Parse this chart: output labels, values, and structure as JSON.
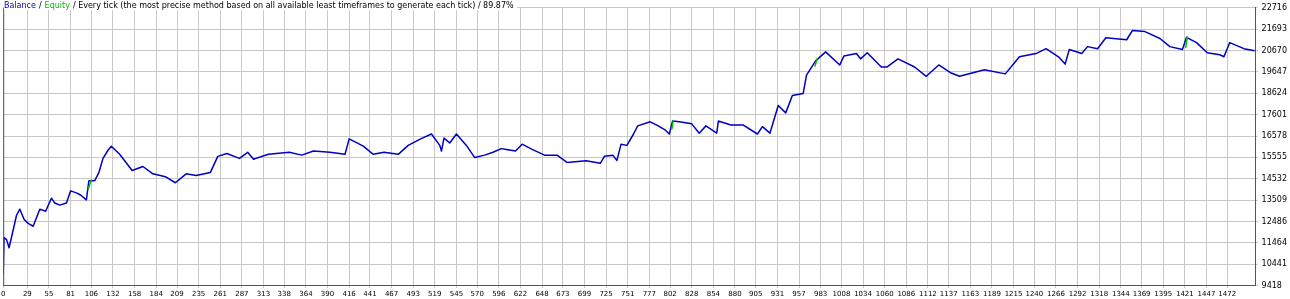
{
  "chart_data": {
    "type": "line",
    "legend": "top left",
    "grid": true,
    "marker": "none",
    "line_style": "solid",
    "annotations": [
      "/",
      "/ Every tick (the most precise method based on all available least timeframes to generate each tick) / 89.87%"
    ],
    "xlim": [
      0,
      1506
    ],
    "xticks": [
      0,
      29,
      55,
      81,
      106,
      132,
      158,
      184,
      209,
      235,
      261,
      287,
      313,
      338,
      364,
      390,
      416,
      441,
      467,
      493,
      519,
      545,
      570,
      596,
      622,
      648,
      673,
      699,
      725,
      751,
      777,
      802,
      828,
      854,
      880,
      905,
      931,
      957,
      983,
      1008,
      1034,
      1060,
      1086,
      1112,
      1137,
      1163,
      1189,
      1215,
      1240,
      1266,
      1292,
      1318,
      1344,
      1369,
      1395,
      1421,
      1447,
      1472
    ],
    "ylim": [
      9418,
      22716
    ],
    "yticks": [
      9418,
      10441,
      11464,
      12486,
      13509,
      14532,
      15555,
      16578,
      17601,
      18624,
      19647,
      20670,
      21693,
      22716
    ],
    "series": [
      {
        "name": "Balance",
        "color": "#0000c0",
        "x": [
          0,
          1,
          4,
          7,
          11,
          16,
          20,
          25,
          30,
          36,
          44,
          51,
          58,
          62,
          68,
          76,
          81,
          88,
          93,
          100,
          103,
          110,
          115,
          120,
          126,
          130,
          140,
          155,
          168,
          180,
          195,
          207,
          220,
          232,
          249,
          258,
          269,
          284,
          294,
          301,
          319,
          344,
          359,
          373,
          393,
          411,
          416,
          433,
          445,
          458,
          475,
          487,
          502,
          515,
          525,
          527,
          530,
          537,
          545,
          557,
          567,
          579,
          589,
          599,
          616,
          624,
          636,
          651,
          666,
          678,
          701,
          718,
          723,
          733,
          738,
          743,
          750,
          758,
          763,
          778,
          786,
          796,
          801,
          805,
          813,
          828,
          837,
          845,
          858,
          860,
          875,
          890,
          907,
          913,
          922,
          932,
          941,
          949,
          962,
          966,
          977,
          989,
          1006,
          1011,
          1026,
          1031,
          1039,
          1056,
          1063,
          1076,
          1096,
          1110,
          1125,
          1140,
          1150,
          1180,
          1205,
          1222,
          1242,
          1254,
          1269,
          1277,
          1282,
          1297,
          1304,
          1316,
          1326,
          1351,
          1358,
          1373,
          1391,
          1403,
          1418,
          1423,
          1435,
          1448,
          1463,
          1468,
          1475,
          1492,
          1505
        ],
        "values": [
          10000,
          11715,
          11618,
          11229,
          11910,
          12785,
          13077,
          12590,
          12396,
          12260,
          13077,
          12980,
          13602,
          13369,
          13271,
          13369,
          13952,
          13855,
          13757,
          13524,
          14438,
          14438,
          14827,
          15508,
          15897,
          16091,
          15702,
          14925,
          15119,
          14769,
          14633,
          14341,
          14769,
          14692,
          14827,
          15605,
          15741,
          15508,
          15800,
          15469,
          15702,
          15800,
          15663,
          15858,
          15800,
          15702,
          16441,
          16091,
          15702,
          15800,
          15702,
          16130,
          16441,
          16675,
          16130,
          15858,
          16480,
          16247,
          16675,
          16130,
          15547,
          15663,
          15800,
          15975,
          15858,
          16189,
          15936,
          15663,
          15663,
          15313,
          15391,
          15274,
          15605,
          15663,
          15410,
          16189,
          16130,
          16675,
          17064,
          17258,
          17103,
          16869,
          16675,
          17297,
          17258,
          17161,
          16714,
          17064,
          16714,
          17297,
          17103,
          17103,
          16675,
          17025,
          16714,
          18036,
          17686,
          18522,
          18619,
          19495,
          20176,
          20604,
          19981,
          20409,
          20526,
          20273,
          20565,
          19884,
          19884,
          20273,
          19884,
          19437,
          19981,
          19592,
          19437,
          19748,
          19553,
          20371,
          20526,
          20759,
          20371,
          20020,
          20720,
          20526,
          20857,
          20759,
          21284,
          21187,
          21635,
          21576,
          21246,
          20857,
          20720,
          21304,
          21051,
          20565,
          20468,
          20371,
          21051,
          20759,
          20662
        ]
      },
      {
        "name": "Equity",
        "color": "#00c000",
        "x": [
          102,
          106,
          107,
          804,
          806,
          807,
          976,
          979,
          980,
          1422,
          1424
        ],
        "values": [
          14000,
          14500,
          null,
          16900,
          17350,
          null,
          19900,
          20300,
          null,
          20800,
          21350
        ]
      }
    ]
  }
}
